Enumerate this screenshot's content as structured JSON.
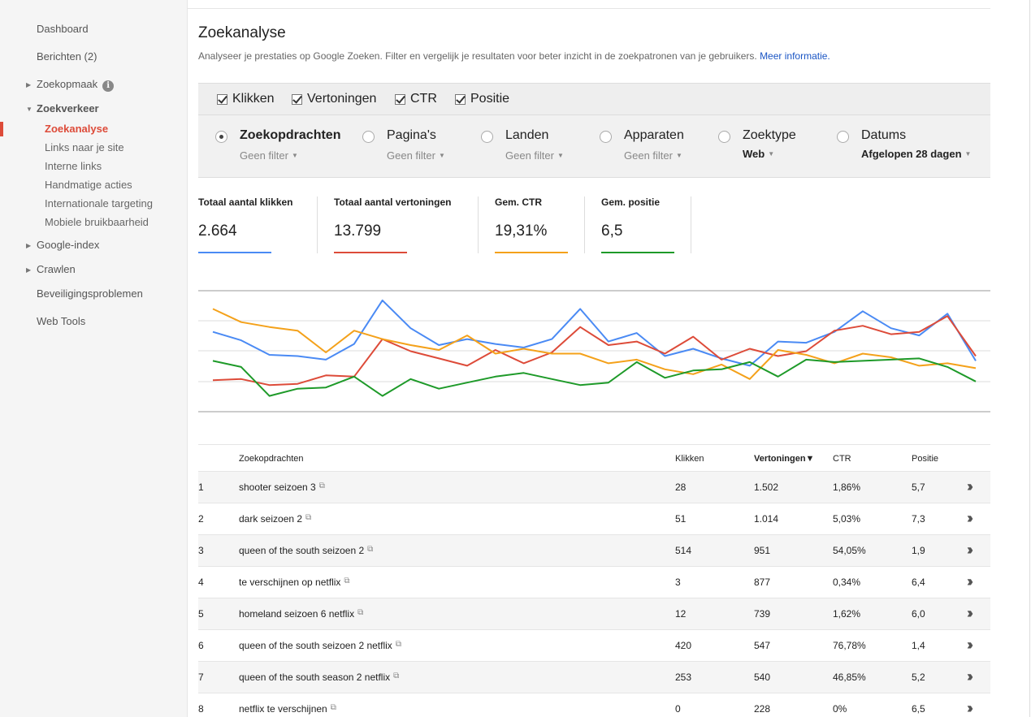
{
  "sidebar": {
    "items": [
      {
        "label": "Dashboard"
      },
      {
        "label": "Berichten (2)"
      },
      {
        "label": "Zoekopmaak"
      },
      {
        "label": "Zoekverkeer"
      },
      {
        "label": "Google-index"
      },
      {
        "label": "Crawlen"
      },
      {
        "label": "Beveiligingsproblemen"
      },
      {
        "label": "Web Tools"
      }
    ],
    "subitems": [
      {
        "label": "Zoekanalyse"
      },
      {
        "label": "Links naar je site"
      },
      {
        "label": "Interne links"
      },
      {
        "label": "Handmatige acties"
      },
      {
        "label": "Internationale targeting"
      },
      {
        "label": "Mobiele bruikbaarheid"
      }
    ],
    "info_icon": "i"
  },
  "header": {
    "title": "Zoekanalyse",
    "description": "Analyseer je prestaties op Google Zoeken. Filter en vergelijk je resultaten voor beter inzicht in de zoekpatronen van je gebruikers.",
    "link": "Meer informatie."
  },
  "checks": [
    {
      "label": "Klikken",
      "checked": true
    },
    {
      "label": "Vertoningen",
      "checked": true
    },
    {
      "label": "CTR",
      "checked": true
    },
    {
      "label": "Positie",
      "checked": true
    }
  ],
  "dimensions": [
    {
      "label": "Zoekopdrachten",
      "filter": "Geen filter",
      "selected": true
    },
    {
      "label": "Pagina's",
      "filter": "Geen filter",
      "selected": false
    },
    {
      "label": "Landen",
      "filter": "Geen filter",
      "selected": false
    },
    {
      "label": "Apparaten",
      "filter": "Geen filter",
      "selected": false
    },
    {
      "label": "Zoektype",
      "filter": "Web",
      "selected": false
    },
    {
      "label": "Datums",
      "filter": "Afgelopen 28 dagen",
      "selected": false
    }
  ],
  "metrics": [
    {
      "label": "Totaal aantal klikken",
      "value": "2.664",
      "color": "#4a8af4"
    },
    {
      "label": "Totaal aantal vertoningen",
      "value": "13.799",
      "color": "#dd4b39"
    },
    {
      "label": "Gem. CTR",
      "value": "19,31%",
      "color": "#f4a11a"
    },
    {
      "label": "Gem. positie",
      "value": "6,5",
      "color": "#1e9a29"
    }
  ],
  "chart_data": {
    "type": "line",
    "grid": true,
    "series": [
      {
        "color": "#4a8af4",
        "values": [
          0.66,
          0.59,
          0.47,
          0.46,
          0.43,
          0.56,
          0.92,
          0.69,
          0.55,
          0.6,
          0.56,
          0.53,
          0.6,
          0.85,
          0.58,
          0.65,
          0.46,
          0.52,
          0.44,
          0.38,
          0.58,
          0.57,
          0.66,
          0.83,
          0.69,
          0.63,
          0.81,
          0.42
        ]
      },
      {
        "color": "#dd4b39",
        "values": [
          0.26,
          0.27,
          0.22,
          0.23,
          0.3,
          0.29,
          0.6,
          0.5,
          0.44,
          0.38,
          0.51,
          0.4,
          0.49,
          0.7,
          0.55,
          0.58,
          0.48,
          0.62,
          0.43,
          0.52,
          0.46,
          0.5,
          0.67,
          0.71,
          0.64,
          0.66,
          0.79,
          0.46
        ]
      },
      {
        "color": "#f4a11a",
        "values": [
          0.85,
          0.74,
          0.7,
          0.67,
          0.49,
          0.67,
          0.6,
          0.55,
          0.51,
          0.63,
          0.48,
          0.52,
          0.48,
          0.48,
          0.4,
          0.43,
          0.35,
          0.31,
          0.39,
          0.27,
          0.51,
          0.47,
          0.4,
          0.48,
          0.45,
          0.38,
          0.4,
          0.36
        ]
      },
      {
        "color": "#1e9a29",
        "values": [
          0.42,
          0.37,
          0.13,
          0.19,
          0.2,
          0.29,
          0.13,
          0.27,
          0.19,
          0.24,
          0.29,
          0.32,
          0.27,
          0.22,
          0.24,
          0.41,
          0.28,
          0.34,
          0.35,
          0.41,
          0.29,
          0.43,
          0.41,
          0.42,
          0.43,
          0.44,
          0.37,
          0.25
        ]
      }
    ]
  },
  "table": {
    "headers": {
      "query": "Zoekopdrachten",
      "clicks": "Klikken",
      "impressions": "Vertoningen▼",
      "ctr": "CTR",
      "position": "Positie"
    },
    "rows": [
      {
        "n": "1",
        "query": "shooter seizoen 3",
        "clicks": "28",
        "impressions": "1.502",
        "ctr": "1,86%",
        "position": "5,7"
      },
      {
        "n": "2",
        "query": "dark seizoen 2",
        "clicks": "51",
        "impressions": "1.014",
        "ctr": "5,03%",
        "position": "7,3"
      },
      {
        "n": "3",
        "query": "queen of the south seizoen 2",
        "clicks": "514",
        "impressions": "951",
        "ctr": "54,05%",
        "position": "1,9"
      },
      {
        "n": "4",
        "query": "te verschijnen op netflix",
        "clicks": "3",
        "impressions": "877",
        "ctr": "0,34%",
        "position": "6,4"
      },
      {
        "n": "5",
        "query": "homeland seizoen 6 netflix",
        "clicks": "12",
        "impressions": "739",
        "ctr": "1,62%",
        "position": "6,0"
      },
      {
        "n": "6",
        "query": "queen of the south seizoen 2 netflix",
        "clicks": "420",
        "impressions": "547",
        "ctr": "76,78%",
        "position": "1,4"
      },
      {
        "n": "7",
        "query": "queen of the south season 2 netflix",
        "clicks": "253",
        "impressions": "540",
        "ctr": "46,85%",
        "position": "5,2"
      },
      {
        "n": "8",
        "query": "netflix te verschijnen",
        "clicks": "0",
        "impressions": "228",
        "ctr": "0%",
        "position": "6,5"
      }
    ]
  }
}
